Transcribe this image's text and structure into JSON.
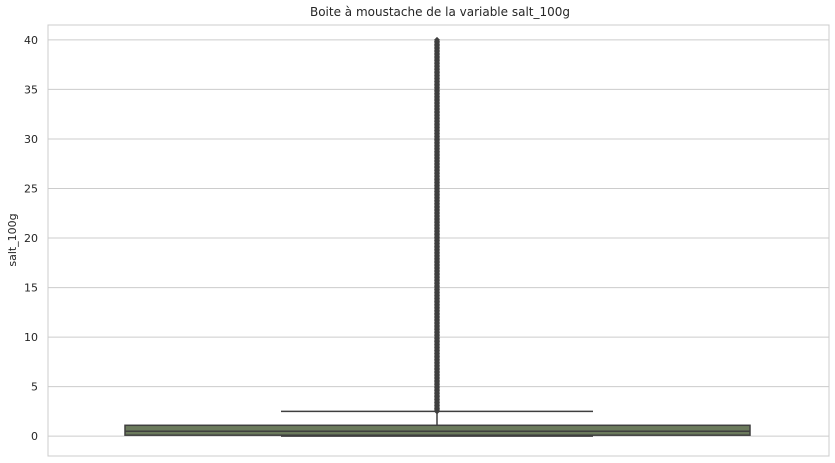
{
  "chart_data": {
    "type": "box",
    "title": "Boite à moustache de la variable salt_100g",
    "xlabel": "",
    "ylabel": "salt_100g",
    "ylim": [
      -2,
      41.5
    ],
    "yticks": [
      0,
      5,
      10,
      15,
      20,
      25,
      30,
      35,
      40
    ],
    "grid": true,
    "colors": {
      "box_fill": "#6b7a5c",
      "line": "#3f3f3f",
      "grid": "#cccccc",
      "frame": "#cccccc"
    },
    "series": [
      {
        "min": 0.0,
        "q1": 0.1,
        "median": 0.5,
        "q3": 1.1,
        "whisker_low": 0.0,
        "whisker_high": 2.5,
        "outliers_from": 2.5,
        "outliers_to": 40.0
      }
    ]
  }
}
